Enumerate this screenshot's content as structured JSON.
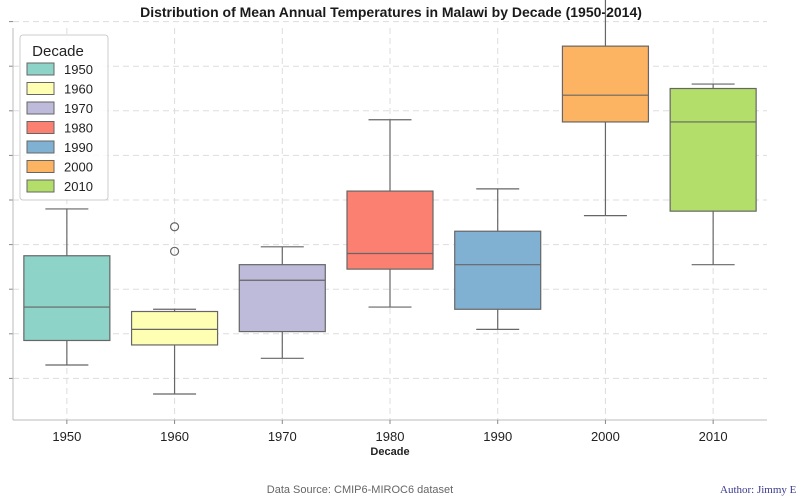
{
  "chart_data": {
    "type": "box",
    "title": "Distribution of Mean Annual Temperatures in Malawi by Decade (1950-2014)",
    "xlabel": "Decade",
    "ylabel": "",
    "categories": [
      "1950",
      "1960",
      "1970",
      "1980",
      "1990",
      "2000",
      "2010"
    ],
    "ylim": [
      0.5,
      9.6
    ],
    "grid": true,
    "series": [
      {
        "name": "1950",
        "color": "#8DD3C7",
        "whisker_low": 1.3,
        "q1": 1.85,
        "median": 2.6,
        "q3": 3.75,
        "whisker_high": 4.8,
        "outliers": []
      },
      {
        "name": "1960",
        "color": "#FFFFB3",
        "whisker_low": 0.65,
        "q1": 1.75,
        "median": 2.1,
        "q3": 2.5,
        "whisker_high": 2.55,
        "outliers": [
          3.85,
          4.4
        ]
      },
      {
        "name": "1970",
        "color": "#BEBADA",
        "whisker_low": 1.45,
        "q1": 2.05,
        "median": 3.2,
        "q3": 3.55,
        "whisker_high": 3.95,
        "outliers": []
      },
      {
        "name": "1980",
        "color": "#FB8072",
        "whisker_low": 2.6,
        "q1": 3.45,
        "median": 3.8,
        "q3": 5.2,
        "whisker_high": 6.8,
        "outliers": []
      },
      {
        "name": "1990",
        "color": "#80B1D3",
        "whisker_low": 2.1,
        "q1": 2.55,
        "median": 3.55,
        "q3": 4.3,
        "whisker_high": 5.25,
        "outliers": []
      },
      {
        "name": "2000",
        "color": "#FDB462",
        "whisker_low": 4.65,
        "q1": 6.75,
        "median": 7.35,
        "q3": 8.45,
        "whisker_high": 9.65,
        "outliers": []
      },
      {
        "name": "2010",
        "color": "#B3DE69",
        "whisker_low": 3.55,
        "q1": 4.75,
        "median": 6.75,
        "q3": 7.5,
        "whisker_high": 7.6,
        "outliers": []
      }
    ],
    "legend": {
      "title": "Decade",
      "position": "upper-left",
      "entries": [
        "1950",
        "1960",
        "1970",
        "1980",
        "1990",
        "2000",
        "2010"
      ]
    }
  },
  "footer": {
    "source": "Data Source: CMIP6-MIROC6 dataset",
    "author": "Author: Jimmy E"
  }
}
